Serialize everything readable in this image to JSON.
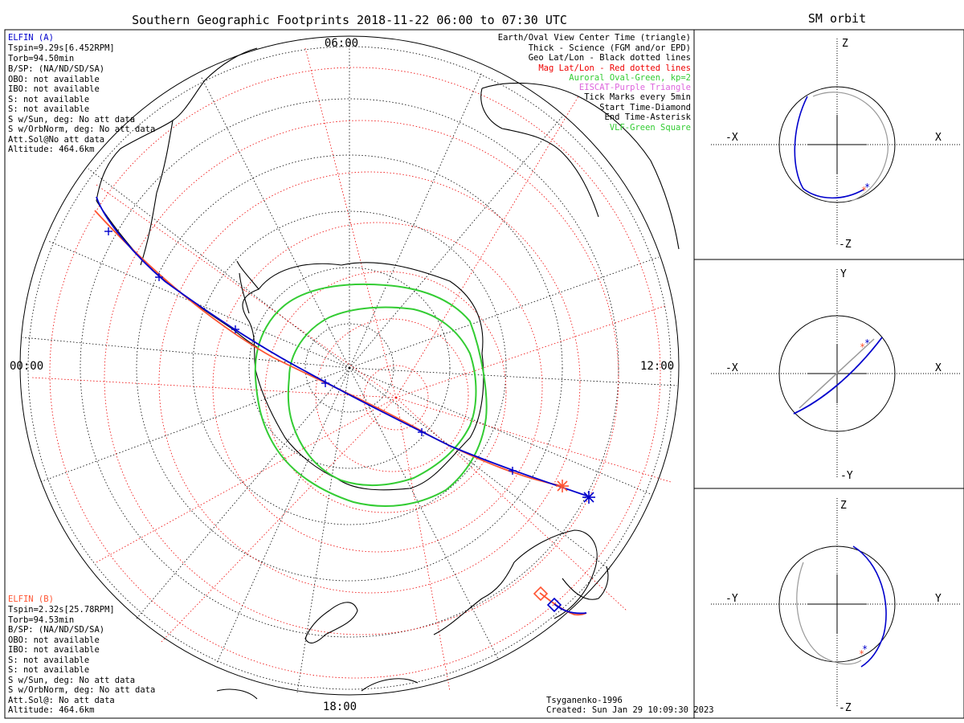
{
  "title": "Southern Geographic Footprints 2018-11-22 06:00 to 07:30 UTC",
  "sm_title": "SM orbit",
  "hour_labels": {
    "top": "06:00",
    "left": "00:00",
    "right": "12:00",
    "bottom": "18:00"
  },
  "elfin_a": {
    "name": "ELFIN (A)",
    "lines": [
      "Tspin=9.29s[6.452RPM]",
      "Torb=94.50min",
      "B/SP: (NA/ND/SD/SA)",
      "OBO: not available",
      "IBO: not available",
      "S: not available",
      "S: not available",
      "S w/Sun, deg: No att data",
      "S w/OrbNorm, deg: No att data",
      "Att.Sol@No att data",
      "Altitude: 464.6km"
    ],
    "color": "#0000cc"
  },
  "elfin_b": {
    "name": "ELFIN (B)",
    "lines": [
      "Tspin=2.32s[25.78RPM]",
      "Torb=94.53min",
      "B/SP: (NA/ND/SD/SA)",
      "OBO: not available",
      "IBO: not available",
      "S: not available",
      "S: not available",
      "S w/Sun, deg: No att data",
      "S w/OrbNorm, deg: No att data",
      "Att.Sol@: No att data",
      "Altitude: 464.6km"
    ],
    "color": "#ff5533"
  },
  "legend": [
    {
      "text": "Earth/Oval View Center Time (triangle)",
      "color": "#000000"
    },
    {
      "text": "Thick - Science (FGM and/or EPD)",
      "color": "#000000"
    },
    {
      "text": "Geo Lat/Lon - Black dotted lines",
      "color": "#000000"
    },
    {
      "text": "Mag Lat/Lon - Red dotted lines",
      "color": "#ee0000"
    },
    {
      "text": "Auroral Oval-Green, kp=2",
      "color": "#33cc33"
    },
    {
      "text": "EISCAT-Purple Triangle",
      "color": "#dd66dd"
    },
    {
      "text": "Tick Marks every 5min",
      "color": "#000000"
    },
    {
      "text": "Start Time-Diamond",
      "color": "#000000"
    },
    {
      "text": "End Time-Asterisk",
      "color": "#000000"
    },
    {
      "text": "VLF-Green Square",
      "color": "#33cc33"
    }
  ],
  "footer": {
    "model": "Tsyganenko-1996",
    "created": "Created: Sun Jan 29 10:09:30 2023"
  },
  "sm_panels": [
    {
      "top": "Z",
      "bottom": "-Z",
      "left": "-X",
      "right": "X"
    },
    {
      "top": "Y",
      "bottom": "-Y",
      "left": "-X",
      "right": "X"
    },
    {
      "top": "Z",
      "bottom": "-Z",
      "left": "-Y",
      "right": "Y"
    }
  ],
  "colors": {
    "elfin_a": "#0000cc",
    "elfin_b": "#ff5533",
    "oval": "#33cc33",
    "mag_grid": "#ee0000",
    "geo_grid": "#000000"
  }
}
